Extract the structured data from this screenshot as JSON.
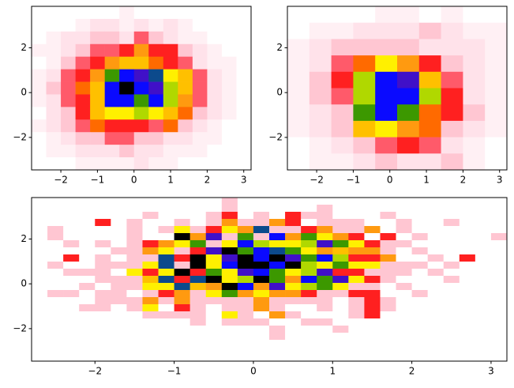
{
  "chart_data": [
    {
      "type": "hist2d",
      "xlim": [
        -2.8,
        3.2
      ],
      "ylim": [
        -3.45,
        3.85
      ],
      "xticks": [
        {
          "value": -2,
          "label": "−2"
        },
        {
          "value": -1,
          "label": "−1"
        },
        0,
        1,
        2,
        3
      ],
      "yticks": [
        {
          "value": -2,
          "label": "−2"
        },
        0,
        2
      ],
      "cmap": [
        "#ffffff",
        "#fff0f4",
        "#ffe2ea",
        "#ffc6d2",
        "#ff5a6a",
        "#ff2020",
        "#ff6a00",
        "#ff9a10",
        "#ffc000",
        "#fff000",
        "#b0d800",
        "#3c9800",
        "#0c4a8c",
        "#0a0aff",
        "#4010c8",
        "#000000"
      ],
      "values": [
        [
          0,
          0,
          0,
          0,
          0,
          0,
          1,
          0,
          0,
          0,
          0,
          0,
          0,
          0,
          0
        ],
        [
          0,
          0,
          0,
          1,
          2,
          2,
          1,
          2,
          1,
          2,
          1,
          0,
          0,
          0,
          0
        ],
        [
          0,
          1,
          2,
          2,
          3,
          3,
          2,
          4,
          3,
          2,
          1,
          1,
          0,
          0,
          0
        ],
        [
          1,
          1,
          2,
          3,
          4,
          4,
          5,
          7,
          5,
          5,
          3,
          2,
          1,
          0,
          0
        ],
        [
          0,
          1,
          3,
          4,
          5,
          7,
          8,
          8,
          6,
          5,
          4,
          2,
          1,
          1,
          0
        ],
        [
          1,
          2,
          4,
          5,
          7,
          11,
          13,
          14,
          12,
          9,
          8,
          4,
          2,
          1,
          0
        ],
        [
          1,
          3,
          4,
          6,
          8,
          13,
          15,
          13,
          14,
          10,
          8,
          4,
          2,
          1,
          0
        ],
        [
          1,
          2,
          4,
          5,
          8,
          13,
          13,
          11,
          13,
          10,
          7,
          4,
          2,
          1,
          0
        ],
        [
          0,
          2,
          3,
          5,
          8,
          9,
          9,
          10,
          9,
          8,
          6,
          3,
          2,
          1,
          0
        ],
        [
          1,
          2,
          3,
          4,
          6,
          5,
          5,
          5,
          4,
          6,
          3,
          2,
          1,
          0,
          0
        ],
        [
          0,
          1,
          2,
          3,
          3,
          4,
          4,
          3,
          3,
          2,
          2,
          1,
          1,
          0,
          0
        ],
        [
          0,
          1,
          1,
          2,
          2,
          2,
          3,
          2,
          2,
          1,
          1,
          1,
          0,
          0,
          0
        ],
        [
          0,
          0,
          0,
          1,
          1,
          1,
          1,
          2,
          1,
          1,
          0,
          0,
          0,
          0,
          0
        ]
      ]
    },
    {
      "type": "hist2d",
      "xlim": [
        -2.8,
        3.2
      ],
      "ylim": [
        -3.45,
        3.85
      ],
      "xticks": [
        {
          "value": -2,
          "label": "−2"
        },
        {
          "value": -1,
          "label": "−1"
        },
        0,
        1,
        2,
        3
      ],
      "yticks": [
        {
          "value": -2,
          "label": "−2"
        },
        0,
        2
      ],
      "cmap": [
        "#ffffff",
        "#fff0f4",
        "#ffe2ea",
        "#ffc6d2",
        "#ff5a6a",
        "#ff2020",
        "#ff6a00",
        "#ff9a10",
        "#ffc000",
        "#fff000",
        "#b0d800",
        "#3c9800",
        "#0c4a8c",
        "#0a0aff",
        "#4010c8",
        "#000000"
      ],
      "values": [
        [
          0,
          0,
          0,
          0,
          1,
          1,
          0,
          1,
          0,
          0
        ],
        [
          0,
          1,
          1,
          2,
          2,
          2,
          3,
          2,
          1,
          1
        ],
        [
          1,
          2,
          3,
          3,
          3,
          3,
          2,
          2,
          2,
          1
        ],
        [
          1,
          2,
          4,
          6,
          9,
          7,
          5,
          3,
          2,
          1
        ],
        [
          1,
          3,
          5,
          10,
          13,
          14,
          8,
          4,
          2,
          1
        ],
        [
          1,
          3,
          4,
          10,
          13,
          13,
          10,
          5,
          2,
          1
        ],
        [
          1,
          2,
          3,
          11,
          13,
          11,
          6,
          5,
          3,
          1
        ],
        [
          1,
          2,
          3,
          8,
          9,
          7,
          6,
          3,
          2,
          1
        ],
        [
          0,
          1,
          2,
          3,
          4,
          5,
          4,
          2,
          1,
          0
        ],
        [
          0,
          1,
          1,
          2,
          3,
          2,
          2,
          3,
          1,
          0
        ]
      ]
    },
    {
      "type": "hist2d",
      "xlim": [
        -2.8,
        3.2
      ],
      "ylim": [
        -3.45,
        3.85
      ],
      "xticks": [
        {
          "value": -2,
          "label": "−2"
        },
        {
          "value": -1,
          "label": "−1"
        },
        0,
        1,
        2,
        3
      ],
      "yticks": [
        {
          "value": -2,
          "label": "−2"
        },
        0,
        2
      ],
      "cmap": [
        "#ffffff",
        "#fff0f4",
        "#ffe2ea",
        "#ffc6d2",
        "#ff5a6a",
        "#ff2020",
        "#ff6a00",
        "#ff9a10",
        "#ffc000",
        "#fff000",
        "#b0d800",
        "#3c9800",
        "#0c4a8c",
        "#0a0aff",
        "#4010c8",
        "#000000"
      ],
      "values": [
        [
          0,
          0,
          0,
          0,
          0,
          0,
          0,
          0,
          0,
          0,
          0,
          0,
          3,
          0,
          0,
          0,
          0,
          0,
          0,
          0,
          0,
          0,
          0,
          0,
          0,
          0,
          0,
          0,
          0,
          0
        ],
        [
          0,
          0,
          0,
          0,
          0,
          0,
          0,
          0,
          0,
          0,
          0,
          0,
          3,
          0,
          0,
          0,
          0,
          0,
          3,
          0,
          0,
          0,
          0,
          0,
          0,
          0,
          0,
          0,
          0,
          0
        ],
        [
          0,
          0,
          0,
          0,
          0,
          0,
          0,
          3,
          0,
          0,
          0,
          3,
          5,
          0,
          3,
          0,
          5,
          3,
          3,
          0,
          0,
          0,
          3,
          0,
          0,
          0,
          0,
          0,
          0,
          0
        ],
        [
          0,
          0,
          0,
          0,
          5,
          0,
          3,
          0,
          0,
          3,
          0,
          3,
          7,
          3,
          3,
          7,
          5,
          0,
          3,
          3,
          3,
          0,
          0,
          3,
          0,
          0,
          3,
          0,
          0,
          0
        ],
        [
          0,
          3,
          0,
          0,
          0,
          0,
          3,
          0,
          3,
          9,
          3,
          5,
          9,
          7,
          12,
          3,
          3,
          5,
          7,
          3,
          3,
          7,
          0,
          3,
          0,
          0,
          0,
          0,
          0,
          0
        ],
        [
          0,
          3,
          0,
          0,
          0,
          0,
          3,
          0,
          0,
          15,
          7,
          14,
          3,
          11,
          3,
          13,
          7,
          11,
          9,
          7,
          5,
          0,
          5,
          0,
          3,
          0,
          0,
          0,
          0,
          3
        ],
        [
          0,
          0,
          3,
          0,
          3,
          0,
          3,
          5,
          7,
          9,
          11,
          3,
          9,
          13,
          10,
          9,
          9,
          10,
          14,
          11,
          9,
          5,
          3,
          3,
          0,
          0,
          0,
          0,
          0,
          0
        ],
        [
          0,
          0,
          0,
          0,
          0,
          3,
          3,
          7,
          9,
          3,
          5,
          14,
          15,
          11,
          13,
          12,
          11,
          9,
          7,
          8,
          7,
          7,
          3,
          0,
          3,
          0,
          0,
          0,
          0,
          0
        ],
        [
          0,
          0,
          5,
          0,
          3,
          0,
          3,
          3,
          12,
          5,
          15,
          9,
          14,
          15,
          13,
          15,
          14,
          11,
          13,
          10,
          5,
          5,
          7,
          0,
          0,
          3,
          0,
          5,
          0,
          0
        ],
        [
          0,
          3,
          0,
          0,
          3,
          3,
          3,
          9,
          12,
          3,
          15,
          9,
          13,
          15,
          15,
          13,
          15,
          10,
          9,
          11,
          9,
          9,
          3,
          3,
          3,
          0,
          3,
          0,
          0,
          0
        ],
        [
          0,
          0,
          3,
          3,
          3,
          0,
          9,
          5,
          9,
          15,
          5,
          11,
          9,
          14,
          13,
          11,
          9,
          10,
          14,
          5,
          5,
          3,
          3,
          3,
          0,
          3,
          0,
          0,
          0,
          0
        ],
        [
          0,
          0,
          0,
          0,
          3,
          3,
          3,
          8,
          12,
          5,
          12,
          15,
          9,
          10,
          15,
          11,
          7,
          13,
          11,
          14,
          9,
          5,
          3,
          0,
          0,
          0,
          3,
          0,
          0,
          0
        ],
        [
          0,
          0,
          0,
          3,
          0,
          3,
          3,
          9,
          9,
          12,
          8,
          7,
          15,
          13,
          7,
          14,
          9,
          10,
          11,
          9,
          3,
          3,
          0,
          3,
          0,
          0,
          0,
          0,
          0,
          0
        ],
        [
          0,
          3,
          3,
          0,
          3,
          3,
          0,
          3,
          5,
          7,
          3,
          9,
          11,
          7,
          9,
          7,
          7,
          5,
          3,
          3,
          5,
          5,
          0,
          0,
          3,
          0,
          0,
          0,
          0,
          0
        ],
        [
          0,
          0,
          0,
          0,
          3,
          3,
          3,
          7,
          3,
          7,
          3,
          3,
          3,
          3,
          7,
          3,
          3,
          3,
          3,
          0,
          3,
          5,
          3,
          0,
          0,
          0,
          0,
          0,
          0,
          0
        ],
        [
          0,
          0,
          0,
          3,
          3,
          0,
          3,
          9,
          0,
          5,
          3,
          0,
          3,
          3,
          7,
          3,
          0,
          0,
          3,
          0,
          3,
          5,
          3,
          0,
          0,
          0,
          0,
          0,
          0,
          0
        ],
        [
          0,
          0,
          0,
          0,
          0,
          0,
          0,
          3,
          3,
          3,
          3,
          0,
          9,
          3,
          0,
          7,
          3,
          0,
          0,
          0,
          3,
          5,
          0,
          0,
          0,
          0,
          0,
          0,
          0,
          0
        ],
        [
          0,
          0,
          0,
          0,
          0,
          0,
          0,
          0,
          0,
          0,
          3,
          0,
          3,
          3,
          3,
          0,
          0,
          3,
          3,
          0,
          0,
          0,
          0,
          0,
          0,
          0,
          0,
          0,
          0,
          0
        ],
        [
          0,
          0,
          0,
          0,
          0,
          0,
          0,
          0,
          0,
          0,
          0,
          0,
          0,
          0,
          0,
          3,
          0,
          0,
          0,
          3,
          0,
          0,
          0,
          0,
          0,
          0,
          0,
          0,
          0,
          0
        ],
        [
          0,
          0,
          0,
          0,
          0,
          0,
          0,
          0,
          0,
          0,
          0,
          0,
          0,
          0,
          0,
          3,
          0,
          0,
          0,
          0,
          0,
          0,
          0,
          0,
          0,
          0,
          0,
          0,
          0,
          0
        ],
        [
          0,
          0,
          0,
          0,
          0,
          0,
          0,
          0,
          0,
          0,
          0,
          0,
          0,
          0,
          0,
          0,
          0,
          0,
          0,
          0,
          0,
          0,
          0,
          0,
          0,
          0,
          0,
          0,
          0,
          0
        ],
        [
          0,
          0,
          0,
          0,
          0,
          0,
          0,
          0,
          0,
          0,
          0,
          0,
          0,
          0,
          0,
          0,
          0,
          0,
          0,
          0,
          0,
          0,
          0,
          0,
          0,
          0,
          0,
          0,
          0,
          0
        ],
        [
          0,
          0,
          0,
          0,
          0,
          0,
          0,
          0,
          0,
          0,
          0,
          0,
          0,
          0,
          0,
          0,
          0,
          0,
          0,
          0,
          0,
          0,
          0,
          0,
          0,
          0,
          0,
          0,
          0,
          0
        ]
      ]
    }
  ]
}
